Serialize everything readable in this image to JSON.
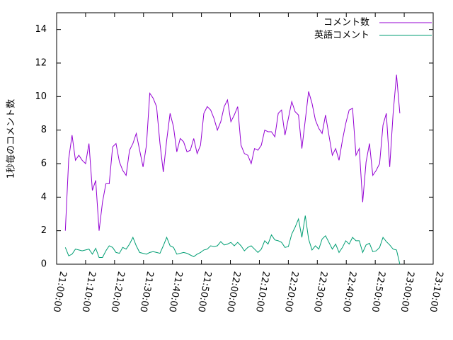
{
  "chart_data": {
    "type": "line",
    "y_label": "1秒毎のコメント数",
    "x": [
      "21:03:00",
      "21:04:10",
      "21:05:20",
      "21:06:30",
      "21:07:40",
      "21:08:50",
      "21:10:00",
      "21:11:10",
      "21:12:20",
      "21:13:30",
      "21:14:40",
      "21:15:50",
      "21:17:00",
      "21:18:10",
      "21:19:20",
      "21:20:30",
      "21:21:40",
      "21:22:50",
      "21:24:00",
      "21:25:10",
      "21:26:20",
      "21:27:30",
      "21:28:40",
      "21:29:50",
      "21:31:00",
      "21:32:10",
      "21:33:20",
      "21:34:30",
      "21:35:40",
      "21:36:50",
      "21:38:00",
      "21:39:10",
      "21:40:20",
      "21:41:30",
      "21:42:40",
      "21:43:50",
      "21:45:00",
      "21:46:10",
      "21:47:20",
      "21:48:30",
      "21:49:40",
      "21:50:50",
      "21:52:00",
      "21:53:10",
      "21:54:20",
      "21:55:30",
      "21:56:40",
      "21:57:50",
      "21:59:00",
      "22:00:10",
      "22:01:20",
      "22:02:30",
      "22:03:40",
      "22:04:50",
      "22:06:00",
      "22:07:10",
      "22:08:20",
      "22:09:30",
      "22:10:40",
      "22:11:50",
      "22:13:00",
      "22:14:10",
      "22:15:20",
      "22:16:30",
      "22:17:40",
      "22:18:50",
      "22:20:00",
      "22:21:10",
      "22:22:20",
      "22:23:30",
      "22:24:40",
      "22:25:50",
      "22:27:00",
      "22:28:10",
      "22:29:20",
      "22:30:30",
      "22:31:40",
      "22:32:50",
      "22:34:00",
      "22:35:10",
      "22:36:20",
      "22:37:30",
      "22:38:40",
      "22:39:50",
      "22:41:00",
      "22:42:10",
      "22:43:20",
      "22:44:30",
      "22:45:40",
      "22:46:50",
      "22:48:00",
      "22:49:10",
      "22:50:20",
      "22:51:30",
      "22:52:40",
      "22:53:50",
      "22:55:00",
      "22:56:10",
      "22:57:20",
      "22:58:30"
    ],
    "series": [
      {
        "name": "コメント数",
        "color": "#9400d3",
        "values": [
          2.0,
          6.3,
          7.7,
          6.2,
          6.5,
          6.2,
          6.0,
          7.2,
          4.4,
          5.0,
          2.0,
          3.7,
          4.8,
          4.8,
          7.0,
          7.2,
          6.1,
          5.6,
          5.3,
          6.8,
          7.2,
          7.8,
          6.8,
          5.8,
          7.1,
          10.2,
          9.9,
          9.4,
          7.2,
          5.5,
          7.4,
          9.0,
          8.2,
          6.7,
          7.5,
          7.3,
          6.7,
          6.8,
          7.5,
          6.6,
          7.1,
          9.0,
          9.4,
          9.2,
          8.7,
          8.0,
          8.5,
          9.4,
          9.8,
          8.5,
          8.9,
          9.4,
          7.1,
          6.6,
          6.5,
          6.0,
          6.9,
          6.8,
          7.1,
          8.0,
          7.9,
          7.9,
          7.6,
          9.0,
          9.2,
          7.7,
          8.7,
          9.7,
          9.1,
          8.9,
          6.9,
          8.6,
          10.3,
          9.6,
          8.6,
          8.1,
          7.8,
          8.9,
          7.7,
          6.5,
          6.9,
          6.2,
          7.4,
          8.4,
          9.2,
          9.3,
          6.5,
          6.9,
          3.7,
          6.1,
          7.2,
          5.3,
          5.6,
          6.0,
          8.3,
          9.0,
          5.8,
          9.0,
          11.3,
          9.0
        ]
      },
      {
        "name": "英語コメント",
        "color": "#009e73",
        "values": [
          1.0,
          0.5,
          0.6,
          0.9,
          0.85,
          0.8,
          0.85,
          0.9,
          0.6,
          0.95,
          0.4,
          0.4,
          0.8,
          1.1,
          1.0,
          0.7,
          0.65,
          1.0,
          0.9,
          1.2,
          1.6,
          1.1,
          0.7,
          0.65,
          0.6,
          0.7,
          0.75,
          0.7,
          0.65,
          1.1,
          1.6,
          1.1,
          1.0,
          0.6,
          0.65,
          0.7,
          0.65,
          0.55,
          0.45,
          0.6,
          0.7,
          0.85,
          0.9,
          1.1,
          1.05,
          1.1,
          1.35,
          1.15,
          1.2,
          1.3,
          1.1,
          1.3,
          1.1,
          0.8,
          1.0,
          1.1,
          0.9,
          0.7,
          0.9,
          1.4,
          1.2,
          1.75,
          1.45,
          1.4,
          1.3,
          1.0,
          1.05,
          1.8,
          2.2,
          2.7,
          1.6,
          2.9,
          1.5,
          0.85,
          1.1,
          0.9,
          1.5,
          1.7,
          1.3,
          0.9,
          1.2,
          0.7,
          1.0,
          1.4,
          1.2,
          1.6,
          1.4,
          1.4,
          0.7,
          1.15,
          1.25,
          0.75,
          0.8,
          1.0,
          1.6,
          1.35,
          1.15,
          0.9,
          0.85,
          0.0
        ]
      }
    ],
    "xlim": [
      "21:00:00",
      "23:10:00"
    ],
    "xticks": [
      "21:00:00",
      "21:10:00",
      "21:20:00",
      "21:30:00",
      "21:40:00",
      "21:50:00",
      "22:00:00",
      "22:10:00",
      "22:20:00",
      "22:30:00",
      "22:40:00",
      "22:50:00",
      "23:00:00",
      "23:10:00"
    ],
    "ylim": [
      0,
      15
    ],
    "yticks": [
      0,
      2,
      4,
      6,
      8,
      10,
      12,
      14
    ],
    "legend": "top-right"
  }
}
